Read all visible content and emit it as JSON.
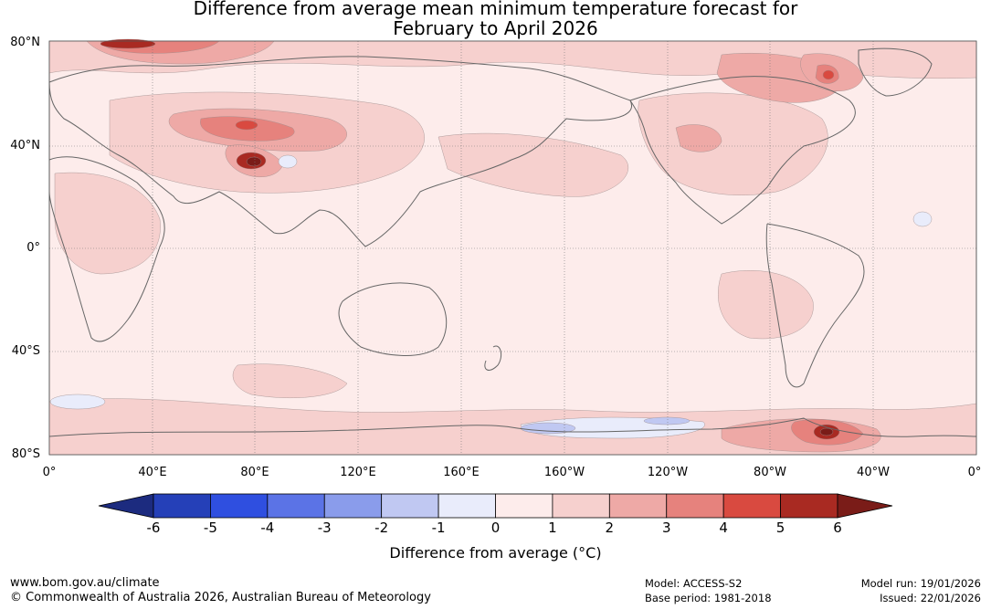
{
  "title": {
    "line1": "Difference from average mean minimum temperature forecast for",
    "line2": "February to April 2026"
  },
  "latitude_labels": [
    "80°N",
    "40°N",
    "0°",
    "40°S",
    "80°S"
  ],
  "longitude_labels": [
    "0°",
    "40°E",
    "80°E",
    "120°E",
    "160°E",
    "160°W",
    "120°W",
    "80°W",
    "40°W",
    "0°"
  ],
  "colorbar": {
    "ticks": [
      "-6",
      "-5",
      "-4",
      "-3",
      "-2",
      "-1",
      "0",
      "1",
      "2",
      "3",
      "4",
      "5",
      "6"
    ],
    "colors": [
      "#1c2b7f",
      "#2540b8",
      "#2f4fe0",
      "#5b73e6",
      "#8a9ceb",
      "#c0c8f2",
      "#e9ecfb",
      "#fdeceb",
      "#f6d0ce",
      "#eea9a6",
      "#e6827d",
      "#d94a40",
      "#a92a22",
      "#7a1c18"
    ],
    "label": "Difference from average (°C)"
  },
  "footer": {
    "website": "www.bom.gov.au/climate",
    "copyright": "© Commonwealth of Australia 2026, Australian Bureau of Meteorology",
    "model": "Model: ACCESS-S2",
    "base_period": "Base period: 1981-2018",
    "model_run": "Model run: 19/01/2026",
    "issued": "Issued: 22/01/2026"
  }
}
